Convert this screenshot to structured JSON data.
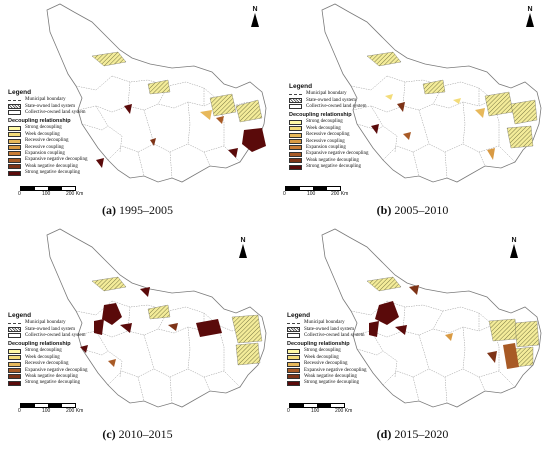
{
  "north_label": "N",
  "legend": {
    "title": "Legend",
    "boundary_items": [
      {
        "label": "Municipal boundary",
        "kind": "line"
      },
      {
        "label": "State-owned land system",
        "kind": "hatch"
      },
      {
        "label": "Collective-owned land system",
        "kind": "empty"
      }
    ],
    "decoupling_title": "Decoupling relationship",
    "full_classes": [
      {
        "label": "Strong decoupling",
        "color": "#fff9a6"
      },
      {
        "label": "Week decoupling",
        "color": "#f3dc7a"
      },
      {
        "label": "Recessive decoupling",
        "color": "#e7b85a"
      },
      {
        "label": "Recessive coupling",
        "color": "#d99a43"
      },
      {
        "label": "Expansion coupling",
        "color": "#c97c35"
      },
      {
        "label": "Expansive negative decoupling",
        "color": "#a85a26"
      },
      {
        "label": "Weak negative decoupling",
        "color": "#7e3317"
      },
      {
        "label": "Strong negative decoupling",
        "color": "#5a0a0a"
      }
    ],
    "short_classes": [
      {
        "label": "Strong decoupling",
        "color": "#fff9a6"
      },
      {
        "label": "Week decoupling",
        "color": "#f3dc7a"
      },
      {
        "label": "Recessive decoupling",
        "color": "#e7b85a"
      },
      {
        "label": "Expansive negative decoupling",
        "color": "#a85a26"
      },
      {
        "label": "Weak negative decoupling",
        "color": "#7e3317"
      },
      {
        "label": "Strong negative decoupling",
        "color": "#5a0a0a"
      }
    ]
  },
  "scale": {
    "labels": [
      "0",
      "100",
      "200 Km"
    ]
  },
  "panels": [
    {
      "letter": "(a)",
      "period": "1995–2005"
    },
    {
      "letter": "(b)",
      "period": "2005–2010"
    },
    {
      "letter": "(c)",
      "period": "2010–2015"
    },
    {
      "letter": "(d)",
      "period": "2015–2020"
    }
  ]
}
